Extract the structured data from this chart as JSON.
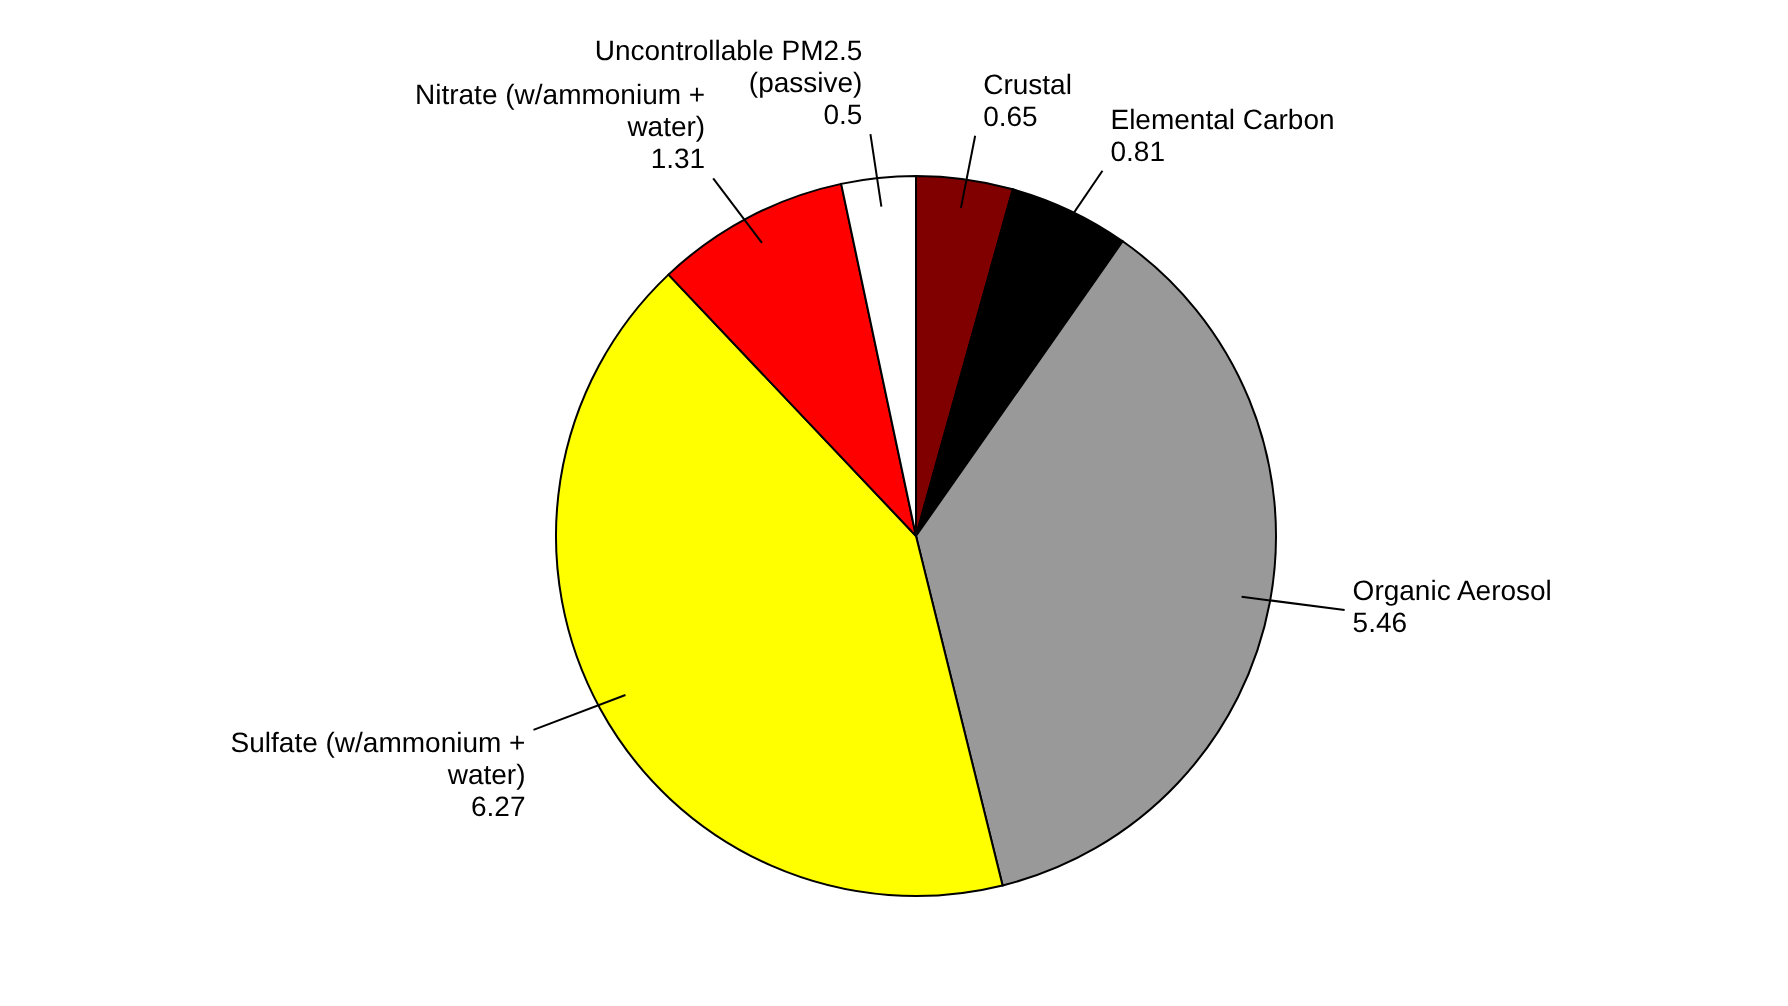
{
  "chart_data": {
    "type": "pie",
    "categories": [
      "Crustal",
      "Elemental Carbon",
      "Organic Aerosol",
      "Sulfate (w/ammonium + water)",
      "Nitrate (w/ammonium + water)",
      "Uncontrollable PM2.5 (passive)"
    ],
    "values": [
      0.65,
      0.81,
      5.46,
      6.27,
      1.31,
      0.5
    ],
    "colors": [
      "#800000",
      "#000000",
      "#999999",
      "#ffff00",
      "#ff0000",
      "#ffffff"
    ],
    "data_labels": true
  }
}
